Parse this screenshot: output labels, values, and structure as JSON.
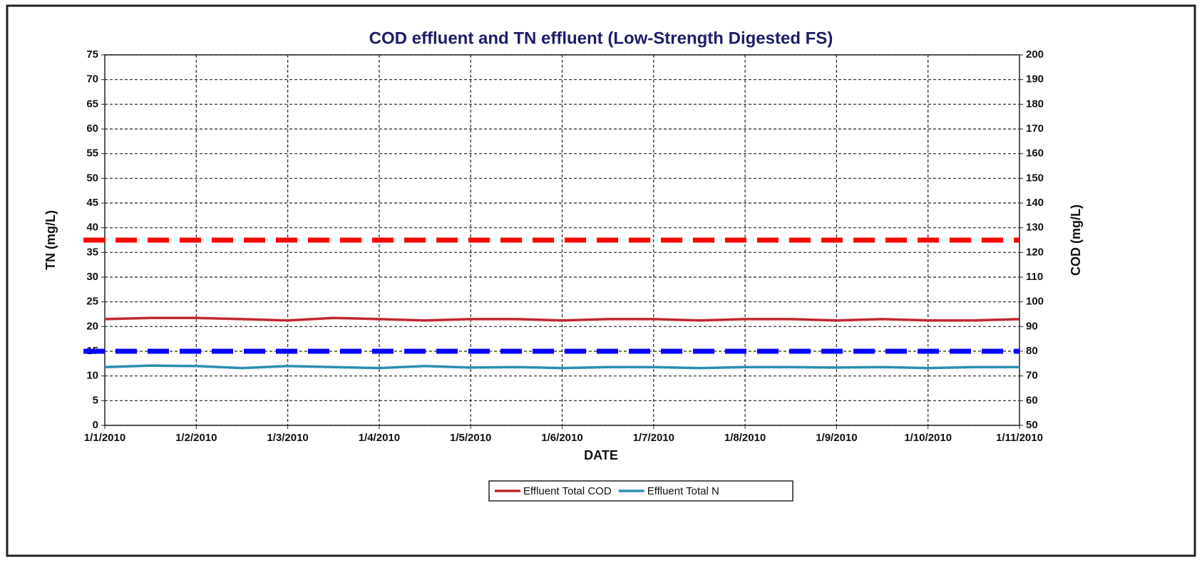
{
  "chart_data": {
    "type": "line",
    "title": "COD effluent and TN effluent (Low-Strength Digested FS)",
    "xlabel": "DATE",
    "ylabel": "TN (mg/L)",
    "y2label": "COD (mg/L)",
    "categories": [
      "1/1/2010",
      null,
      "1/2/2010",
      null,
      "1/3/2010",
      null,
      "1/4/2010",
      null,
      "1/5/2010",
      null,
      "1/6/2010",
      null,
      "1/7/2010",
      null,
      "1/8/2010",
      null,
      "1/9/2010",
      null,
      "1/10/2010",
      null,
      "1/11/2010"
    ],
    "series": [
      {
        "name": "Effluent Total COD",
        "color": "#c0282d",
        "axis": "y2",
        "values": [
          93,
          93.5,
          93.5,
          93,
          92.5,
          93.5,
          93,
          92.5,
          93,
          93,
          92.5,
          93,
          93,
          92.5,
          93,
          93,
          92.5,
          93,
          92.5,
          92.5,
          93
        ]
      },
      {
        "name": "Effluent Total N",
        "color": "#2a8fb0",
        "axis": "y",
        "values": [
          11.8,
          12.1,
          12,
          11.6,
          12,
          11.8,
          11.6,
          12,
          11.7,
          11.8,
          11.6,
          11.8,
          11.8,
          11.6,
          11.8,
          11.8,
          11.7,
          11.8,
          11.6,
          11.8,
          11.8
        ]
      }
    ],
    "reference_lines": [
      {
        "value": 125,
        "axis": "y2",
        "color": "#ff0000"
      },
      {
        "value": 15,
        "axis": "y",
        "color": "#0000ff"
      }
    ],
    "ylim": [
      0,
      75
    ],
    "yticks": [
      0,
      5,
      10,
      15,
      20,
      25,
      30,
      35,
      40,
      45,
      50,
      55,
      60,
      65,
      70,
      75
    ],
    "y2lim": [
      50,
      200
    ],
    "y2ticks": [
      50,
      60,
      70,
      80,
      90,
      100,
      110,
      120,
      130,
      140,
      150,
      160,
      170,
      180,
      190,
      200
    ],
    "grid": true,
    "legend": "bottom"
  }
}
